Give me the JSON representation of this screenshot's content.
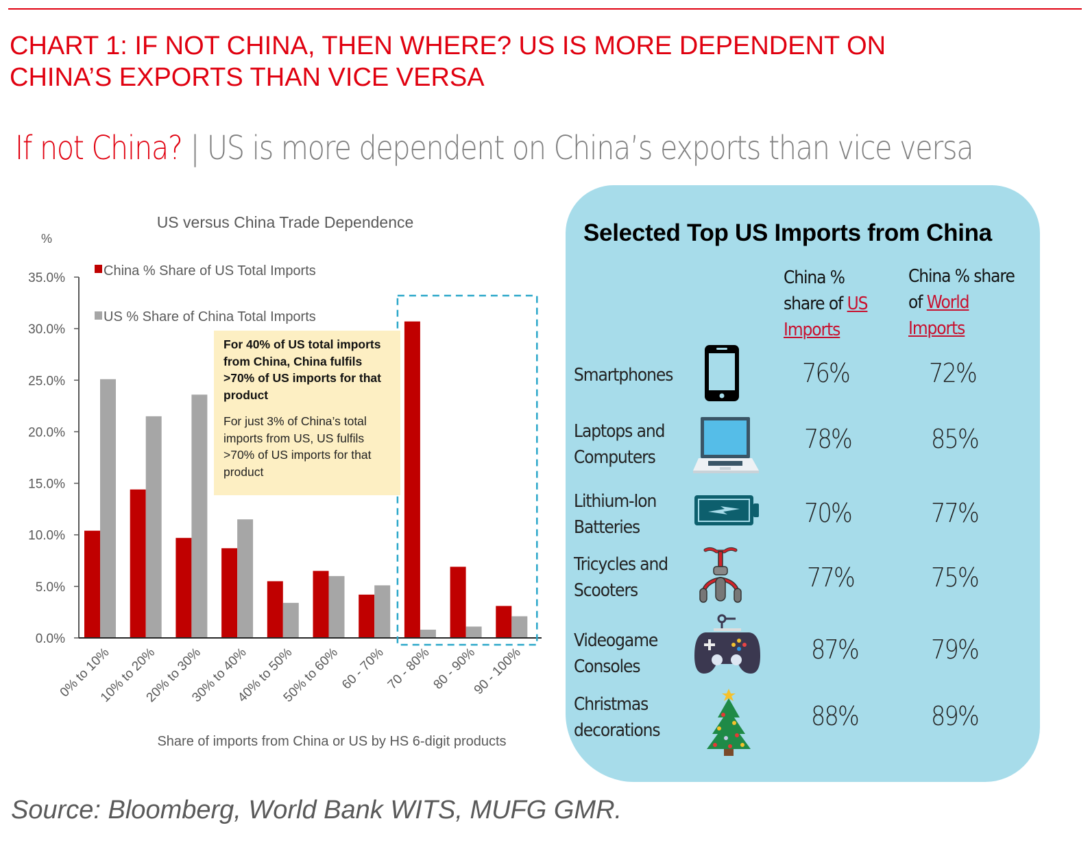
{
  "header": {
    "chart_title_line1": "CHART 1: IF NOT CHINA, THEN WHERE? US IS MORE DEPENDENT ON",
    "chart_title_line2": "CHINA’S EXPORTS THAN VICE VERSA",
    "subtitle_red": "If not China?",
    "subtitle_divider": "|",
    "subtitle_gray": "US is more dependent on China’s exports than vice versa",
    "accent_color": "#e0000f"
  },
  "chart_data": {
    "type": "bar",
    "title": "US versus China Trade Dependence",
    "ylabel": "%",
    "xlabel": "Share of imports from China or US by HS 6-digit products",
    "ylim": [
      0,
      35
    ],
    "yticks": [
      "0.0%",
      "5.0%",
      "10.0%",
      "15.0%",
      "20.0%",
      "25.0%",
      "30.0%",
      "35.0%"
    ],
    "ytick_values": [
      0,
      5,
      10,
      15,
      20,
      25,
      30,
      35
    ],
    "categories": [
      "0% to 10%",
      "10% to 20%",
      "20% to 30%",
      "30% to 40%",
      "40% to 50%",
      "50% to 60%",
      "60 - 70%",
      "70 - 80%",
      "80 - 90%",
      "90 - 100%"
    ],
    "series": [
      {
        "name": "China % Share of US Total Imports",
        "color": "#c00000",
        "values": [
          10.4,
          14.4,
          9.7,
          8.7,
          5.5,
          6.5,
          4.2,
          30.7,
          6.9,
          3.1
        ]
      },
      {
        "name": "US % Share of China Total Imports",
        "color": "#a6a6a6",
        "values": [
          25.1,
          21.5,
          23.6,
          11.5,
          3.4,
          6.0,
          5.1,
          0.8,
          1.1,
          2.1
        ]
      }
    ],
    "legend_position": "top-left",
    "grid": false,
    "highlight_categories": [
      "70 - 80%",
      "80 - 90%",
      "90 - 100%"
    ],
    "highlight_color": "#2aa7c9",
    "annotation": {
      "bold": "For 40% of US total imports from China, China fulfils >70% of US imports for that product",
      "normal": "For just 3% of China’s total imports from US, US fulfils >70% of US imports for that product"
    }
  },
  "panel": {
    "title": "Selected Top US Imports from China",
    "col1_head_a": "China %",
    "col1_head_b": "share of",
    "col1_head_link1": "US",
    "col1_head_link2": "Imports",
    "col2_head_a": "China % share",
    "col2_head_b": "of",
    "col2_head_link1": "World",
    "col2_head_link2": "Imports",
    "rows": [
      {
        "label_1": "Smartphones",
        "label_2": "",
        "icon": "smartphone-icon",
        "us": "76%",
        "world": "72%"
      },
      {
        "label_1": "Laptops and",
        "label_2": "Computers",
        "icon": "laptop-icon",
        "us": "78%",
        "world": "85%"
      },
      {
        "label_1": "Lithium-Ion",
        "label_2": "Batteries",
        "icon": "battery-icon",
        "us": "70%",
        "world": "77%"
      },
      {
        "label_1": "Tricycles and",
        "label_2": "Scooters",
        "icon": "tricycle-icon",
        "us": "77%",
        "world": "75%"
      },
      {
        "label_1": "Videogame",
        "label_2": "Consoles",
        "icon": "game-controller-icon",
        "us": "87%",
        "world": "79%"
      },
      {
        "label_1": "Christmas",
        "label_2": "decorations",
        "icon": "christmas-tree-icon",
        "us": "88%",
        "world": "89%"
      }
    ],
    "bg_color": "#a7dcea"
  },
  "source": "Source: Bloomberg, World Bank WITS, MUFG GMR."
}
